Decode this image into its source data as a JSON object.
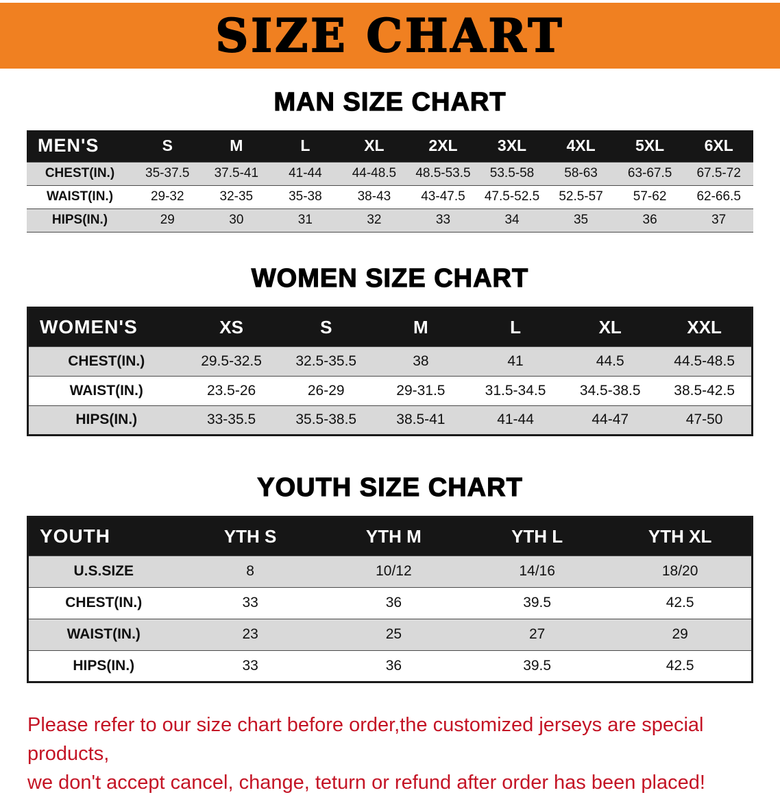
{
  "banner": {
    "title": "SIZE CHART"
  },
  "colors": {
    "banner_bg": "#f08021",
    "table_header_bg": "#161616",
    "row_alt_bg": "#d9d9d9",
    "note_red": "#c41425"
  },
  "man_chart": {
    "heading": "MAN SIZE CHART",
    "table": {
      "header": [
        "MEN'S",
        "S",
        "M",
        "L",
        "XL",
        "2XL",
        "3XL",
        "4XL",
        "5XL",
        "6XL"
      ],
      "rows": [
        [
          "CHEST(IN.)",
          "35-37.5",
          "37.5-41",
          "41-44",
          "44-48.5",
          "48.5-53.5",
          "53.5-58",
          "58-63",
          "63-67.5",
          "67.5-72"
        ],
        [
          "WAIST(IN.)",
          "29-32",
          "32-35",
          "35-38",
          "38-43",
          "43-47.5",
          "47.5-52.5",
          "52.5-57",
          "57-62",
          "62-66.5"
        ],
        [
          "HIPS(IN.)",
          "29",
          "30",
          "31",
          "32",
          "33",
          "34",
          "35",
          "36",
          "37"
        ]
      ]
    }
  },
  "women_chart": {
    "heading": "WOMEN SIZE CHART",
    "table": {
      "header": [
        "WOMEN'S",
        "XS",
        "S",
        "M",
        "L",
        "XL",
        "XXL"
      ],
      "rows": [
        [
          "CHEST(IN.)",
          "29.5-32.5",
          "32.5-35.5",
          "38",
          "41",
          "44.5",
          "44.5-48.5"
        ],
        [
          "WAIST(IN.)",
          "23.5-26",
          "26-29",
          "29-31.5",
          "31.5-34.5",
          "34.5-38.5",
          "38.5-42.5"
        ],
        [
          "HIPS(IN.)",
          "33-35.5",
          "35.5-38.5",
          "38.5-41",
          "41-44",
          "44-47",
          "47-50"
        ]
      ]
    }
  },
  "youth_chart": {
    "heading": "YOUTH SIZE CHART",
    "table": {
      "header": [
        "YOUTH",
        "YTH S",
        "YTH M",
        "YTH L",
        "YTH XL"
      ],
      "rows": [
        [
          "U.S.SIZE",
          "8",
          "10/12",
          "14/16",
          "18/20"
        ],
        [
          "CHEST(IN.)",
          "33",
          "36",
          "39.5",
          "42.5"
        ],
        [
          "WAIST(IN.)",
          "23",
          "25",
          "27",
          "29"
        ],
        [
          "HIPS(IN.)",
          "33",
          "36",
          "39.5",
          "42.5"
        ]
      ]
    }
  },
  "note": {
    "line1": "Please refer to our size chart before order,the customized jerseys are special products,",
    "line2": "we don't accept cancel, change, teturn or refund after order has been placed!"
  }
}
